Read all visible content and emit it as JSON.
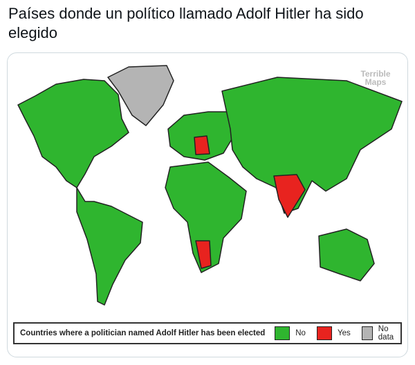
{
  "header": {
    "title": "Países donde un político llamado Adolf Hitler ha sido elegido"
  },
  "map": {
    "watermark": "Terrible Maps",
    "legend": {
      "title": "Countries where a politician named Adolf Hitler has been elected",
      "items": [
        {
          "label": "No",
          "color": "#2fb52f"
        },
        {
          "label": "Yes",
          "color": "#e8231f"
        },
        {
          "label": "No data",
          "color": "#b4b4b4"
        }
      ]
    }
  }
}
